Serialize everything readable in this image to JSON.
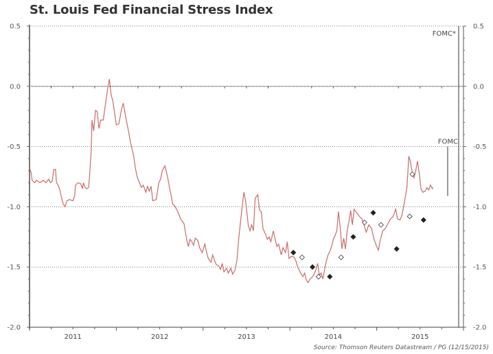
{
  "chart_data": {
    "type": "line",
    "title": "St. Louis Fed Financial Stress Index",
    "source": "Source: Thomson Reuters Datastream / PG (12/15/2015)",
    "xlabel": "",
    "ylabel": "",
    "xlim": [
      2010.5,
      2015.5
    ],
    "ylim": [
      -2.0,
      0.5
    ],
    "y_ticks": [
      0.5,
      0.0,
      -0.5,
      -1.0,
      -1.5,
      -2.0
    ],
    "y_tick_labels": [
      "0.5",
      "0.0",
      "-0.5",
      "-1.0",
      "-1.5",
      "-2.0"
    ],
    "x_tick_labels": [
      {
        "label": "2011",
        "x": 2011.0
      },
      {
        "label": "2012",
        "x": 2012.0
      },
      {
        "label": "2013",
        "x": 2013.0
      },
      {
        "label": "2014",
        "x": 2014.0
      },
      {
        "label": "2015",
        "x": 2015.0
      }
    ],
    "grid": "dotted horizontal",
    "line_color": "#c0504d",
    "series": [
      {
        "name": "St. Louis Fed Financial Stress Index",
        "points": [
          [
            2010.5,
            -0.68
          ],
          [
            2010.52,
            -0.72
          ],
          [
            2010.53,
            -0.78
          ],
          [
            2010.56,
            -0.8
          ],
          [
            2010.58,
            -0.78
          ],
          [
            2010.62,
            -0.8
          ],
          [
            2010.66,
            -0.78
          ],
          [
            2010.69,
            -0.8
          ],
          [
            2010.72,
            -0.77
          ],
          [
            2010.74,
            -0.8
          ],
          [
            2010.76,
            -0.79
          ],
          [
            2010.78,
            -0.69
          ],
          [
            2010.8,
            -0.69
          ],
          [
            2010.81,
            -0.8
          ],
          [
            2010.83,
            -0.82
          ],
          [
            2010.85,
            -0.86
          ],
          [
            2010.87,
            -0.93
          ],
          [
            2010.89,
            -0.98
          ],
          [
            2010.91,
            -1.0
          ],
          [
            2010.93,
            -0.95
          ],
          [
            2010.96,
            -0.94
          ],
          [
            2011.0,
            -0.95
          ],
          [
            2011.02,
            -0.91
          ],
          [
            2011.03,
            -0.82
          ],
          [
            2011.06,
            -0.8
          ],
          [
            2011.09,
            -0.81
          ],
          [
            2011.11,
            -0.85
          ],
          [
            2011.12,
            -0.8
          ],
          [
            2011.14,
            -0.84
          ],
          [
            2011.16,
            -0.85
          ],
          [
            2011.18,
            -0.84
          ],
          [
            2011.19,
            -0.76
          ],
          [
            2011.21,
            -0.55
          ],
          [
            2011.22,
            -0.28
          ],
          [
            2011.24,
            -0.37
          ],
          [
            2011.26,
            -0.2
          ],
          [
            2011.28,
            -0.21
          ],
          [
            2011.3,
            -0.35
          ],
          [
            2011.32,
            -0.28
          ],
          [
            2011.35,
            -0.28
          ],
          [
            2011.37,
            -0.17
          ],
          [
            2011.4,
            -0.02
          ],
          [
            2011.42,
            0.06
          ],
          [
            2011.44,
            -0.07
          ],
          [
            2011.46,
            -0.12
          ],
          [
            2011.48,
            -0.22
          ],
          [
            2011.5,
            -0.32
          ],
          [
            2011.53,
            -0.31
          ],
          [
            2011.56,
            -0.19
          ],
          [
            2011.58,
            -0.14
          ],
          [
            2011.6,
            -0.22
          ],
          [
            2011.62,
            -0.3
          ],
          [
            2011.64,
            -0.37
          ],
          [
            2011.66,
            -0.45
          ],
          [
            2011.68,
            -0.52
          ],
          [
            2011.7,
            -0.58
          ],
          [
            2011.72,
            -0.68
          ],
          [
            2011.74,
            -0.75
          ],
          [
            2011.76,
            -0.79
          ],
          [
            2011.79,
            -0.84
          ],
          [
            2011.81,
            -0.82
          ],
          [
            2011.84,
            -0.88
          ],
          [
            2011.86,
            -0.83
          ],
          [
            2011.88,
            -0.87
          ],
          [
            2011.9,
            -0.83
          ],
          [
            2011.92,
            -0.95
          ],
          [
            2011.96,
            -0.94
          ],
          [
            2011.99,
            -0.8
          ],
          [
            2012.01,
            -0.77
          ],
          [
            2012.03,
            -0.7
          ],
          [
            2012.06,
            -0.66
          ],
          [
            2012.09,
            -0.75
          ],
          [
            2012.11,
            -0.83
          ],
          [
            2012.13,
            -0.9
          ],
          [
            2012.15,
            -0.98
          ],
          [
            2012.17,
            -0.99
          ],
          [
            2012.2,
            -1.03
          ],
          [
            2012.22,
            -1.06
          ],
          [
            2012.24,
            -1.1
          ],
          [
            2012.26,
            -1.12
          ],
          [
            2012.28,
            -1.14
          ],
          [
            2012.31,
            -1.27
          ],
          [
            2012.33,
            -1.33
          ],
          [
            2012.35,
            -1.27
          ],
          [
            2012.37,
            -1.29
          ],
          [
            2012.39,
            -1.32
          ],
          [
            2012.41,
            -1.26
          ],
          [
            2012.44,
            -1.28
          ],
          [
            2012.46,
            -1.34
          ],
          [
            2012.49,
            -1.38
          ],
          [
            2012.52,
            -1.31
          ],
          [
            2012.54,
            -1.38
          ],
          [
            2012.56,
            -1.43
          ],
          [
            2012.59,
            -1.46
          ],
          [
            2012.61,
            -1.4
          ],
          [
            2012.63,
            -1.44
          ],
          [
            2012.65,
            -1.48
          ],
          [
            2012.68,
            -1.49
          ],
          [
            2012.7,
            -1.52
          ],
          [
            2012.72,
            -1.47
          ],
          [
            2012.74,
            -1.54
          ],
          [
            2012.77,
            -1.51
          ],
          [
            2012.79,
            -1.55
          ],
          [
            2012.82,
            -1.51
          ],
          [
            2012.84,
            -1.56
          ],
          [
            2012.87,
            -1.52
          ],
          [
            2012.89,
            -1.44
          ],
          [
            2012.91,
            -1.27
          ],
          [
            2012.93,
            -1.13
          ],
          [
            2012.95,
            -1.0
          ],
          [
            2012.97,
            -0.88
          ],
          [
            2012.99,
            -0.95
          ],
          [
            2013.02,
            -1.15
          ],
          [
            2013.04,
            -1.2
          ],
          [
            2013.06,
            -1.15
          ],
          [
            2013.08,
            -1.2
          ],
          [
            2013.1,
            -0.93
          ],
          [
            2013.13,
            -0.9
          ],
          [
            2013.15,
            -1.03
          ],
          [
            2013.17,
            -1.04
          ],
          [
            2013.19,
            -1.18
          ],
          [
            2013.22,
            -1.23
          ],
          [
            2013.24,
            -1.27
          ],
          [
            2013.26,
            -1.25
          ],
          [
            2013.28,
            -1.29
          ],
          [
            2013.31,
            -1.2
          ],
          [
            2013.33,
            -1.27
          ],
          [
            2013.35,
            -1.33
          ],
          [
            2013.37,
            -1.31
          ],
          [
            2013.4,
            -1.4
          ],
          [
            2013.42,
            -1.34
          ],
          [
            2013.45,
            -1.38
          ],
          [
            2013.47,
            -1.29
          ],
          [
            2013.49,
            -1.43
          ],
          [
            2013.52,
            -1.41
          ],
          [
            2013.55,
            -1.42
          ],
          [
            2013.57,
            -1.45
          ],
          [
            2013.59,
            -1.5
          ],
          [
            2013.61,
            -1.53
          ],
          [
            2013.63,
            -1.56
          ],
          [
            2013.65,
            -1.58
          ],
          [
            2013.67,
            -1.55
          ],
          [
            2013.69,
            -1.61
          ],
          [
            2013.71,
            -1.63
          ],
          [
            2013.73,
            -1.6
          ],
          [
            2013.75,
            -1.59
          ],
          [
            2013.78,
            -1.56
          ],
          [
            2013.8,
            -1.52
          ],
          [
            2013.82,
            -1.47
          ],
          [
            2013.84,
            -1.57
          ],
          [
            2013.86,
            -1.55
          ],
          [
            2013.88,
            -1.6
          ],
          [
            2013.9,
            -1.52
          ],
          [
            2013.92,
            -1.45
          ],
          [
            2013.94,
            -1.4
          ],
          [
            2013.96,
            -1.37
          ],
          [
            2013.98,
            -1.33
          ],
          [
            2014.0,
            -1.27
          ],
          [
            2014.02,
            -1.24
          ],
          [
            2014.04,
            -1.2
          ],
          [
            2014.06,
            -1.04
          ],
          [
            2014.08,
            -1.17
          ],
          [
            2014.1,
            -1.35
          ],
          [
            2014.12,
            -1.26
          ],
          [
            2014.14,
            -1.35
          ],
          [
            2014.16,
            -1.2
          ],
          [
            2014.18,
            -1.12
          ],
          [
            2014.2,
            -1.03
          ],
          [
            2014.22,
            -1.15
          ],
          [
            2014.24,
            -1.02
          ],
          [
            2014.27,
            -1.05
          ],
          [
            2014.3,
            -1.08
          ],
          [
            2014.33,
            -1.1
          ],
          [
            2014.35,
            -1.14
          ],
          [
            2014.38,
            -1.21
          ],
          [
            2014.41,
            -1.15
          ],
          [
            2014.44,
            -1.18
          ],
          [
            2014.47,
            -1.27
          ],
          [
            2014.5,
            -1.33
          ],
          [
            2014.52,
            -1.36
          ],
          [
            2014.54,
            -1.28
          ],
          [
            2014.57,
            -1.2
          ],
          [
            2014.6,
            -1.18
          ],
          [
            2014.63,
            -1.14
          ],
          [
            2014.66,
            -1.1
          ],
          [
            2014.69,
            -1.08
          ],
          [
            2014.72,
            -1.02
          ],
          [
            2014.74,
            -1.1
          ],
          [
            2014.77,
            -1.11
          ],
          [
            2014.79,
            -1.07
          ],
          [
            2014.81,
            -1.0
          ],
          [
            2014.83,
            -0.92
          ],
          [
            2014.85,
            -0.83
          ],
          [
            2014.87,
            -0.58
          ],
          [
            2014.89,
            -0.63
          ],
          [
            2014.91,
            -0.72
          ],
          [
            2014.93,
            -0.76
          ],
          [
            2014.95,
            -0.7
          ],
          [
            2014.97,
            -0.62
          ],
          [
            2014.99,
            -0.72
          ],
          [
            2015.01,
            -0.85
          ],
          [
            2015.03,
            -0.88
          ],
          [
            2015.06,
            -0.87
          ],
          [
            2015.08,
            -0.84
          ],
          [
            2015.1,
            -0.86
          ],
          [
            2015.12,
            -0.82
          ],
          [
            2015.14,
            -0.85
          ],
          [
            2015.15,
            -0.84
          ]
        ]
      }
    ],
    "markers": {
      "filled": [
        [
          2013.54,
          -1.38
        ],
        [
          2013.76,
          -1.5
        ],
        [
          2013.96,
          -1.58
        ],
        [
          2014.23,
          -1.25
        ],
        [
          2014.46,
          -1.05
        ],
        [
          2014.73,
          -1.35
        ],
        [
          2015.04,
          -1.11
        ]
      ],
      "open": [
        [
          2013.64,
          -1.42
        ],
        [
          2013.83,
          -1.58
        ],
        [
          2014.09,
          -1.42
        ],
        [
          2014.36,
          -1.13
        ],
        [
          2014.55,
          -1.15
        ],
        [
          2014.88,
          -1.08
        ],
        [
          2014.91,
          -0.73
        ]
      ]
    },
    "annotations": [
      {
        "label": "FOMC",
        "x": 2015.21,
        "y": -0.5
      },
      {
        "label": "FOMC*",
        "x": 2015.41,
        "y": 0.5
      }
    ]
  }
}
